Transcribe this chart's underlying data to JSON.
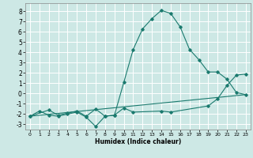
{
  "xlabel": "Humidex (Indice chaleur)",
  "ylabel": "",
  "bg_color": "#cde8e5",
  "grid_color": "#ffffff",
  "line_color": "#1a7a6e",
  "xlim": [
    -0.5,
    23.5
  ],
  "ylim": [
    -3.5,
    8.8
  ],
  "xticks": [
    0,
    1,
    2,
    3,
    4,
    5,
    6,
    7,
    8,
    9,
    10,
    11,
    12,
    13,
    14,
    15,
    16,
    17,
    18,
    19,
    20,
    21,
    22,
    23
  ],
  "yticks": [
    -3,
    -2,
    -1,
    0,
    1,
    2,
    3,
    4,
    5,
    6,
    7,
    8
  ],
  "line1_x": [
    0,
    1,
    2,
    3,
    4,
    5,
    6,
    7,
    8,
    9,
    10,
    11,
    12,
    13,
    14,
    15,
    16,
    17,
    18,
    19,
    20,
    21,
    22,
    23
  ],
  "line1_y": [
    -2.2,
    -1.7,
    -2.1,
    -2.2,
    -2.0,
    -1.8,
    -2.3,
    -3.2,
    -2.2,
    -2.1,
    1.1,
    4.3,
    6.3,
    7.3,
    8.1,
    7.8,
    6.5,
    4.3,
    3.3,
    2.1,
    2.1,
    1.4,
    0.1,
    -0.1
  ],
  "line2_x": [
    0,
    2,
    3,
    4,
    5,
    6,
    7,
    8,
    9,
    10,
    11,
    14,
    15,
    19,
    20,
    21,
    22,
    23
  ],
  "line2_y": [
    -2.2,
    -1.6,
    -2.1,
    -1.9,
    -1.7,
    -2.2,
    -1.5,
    -2.2,
    -2.1,
    -1.4,
    -1.8,
    -1.7,
    -1.8,
    -1.2,
    -0.5,
    0.8,
    1.8,
    1.9
  ],
  "line3_x": [
    0,
    23
  ],
  "line3_y": [
    -2.2,
    -0.1
  ]
}
